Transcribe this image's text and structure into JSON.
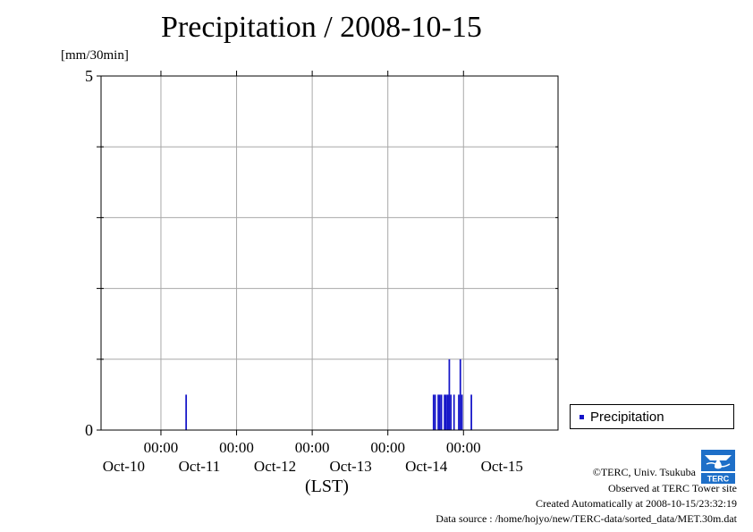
{
  "chart_data": {
    "type": "bar",
    "title": "Precipitation / 2008-10-15",
    "ylabel": "[mm/30min]",
    "xlabel": "(LST)",
    "ylim": [
      0,
      5
    ],
    "xlim": [
      "2008-10-09 05:00",
      "2008-10-15 06:00"
    ],
    "yticks": [
      {
        "value": 0,
        "label": "0"
      },
      {
        "value": 5,
        "label": "5"
      }
    ],
    "ygrid": [
      1,
      2,
      3,
      4
    ],
    "xticks": [
      {
        "at": "2008-10-10 00:00",
        "time": "00:00",
        "date": "Oct-11"
      },
      {
        "at": "2008-10-11 00:00",
        "time": "00:00",
        "date": "Oct-12"
      },
      {
        "at": "2008-10-12 00:00",
        "time": "00:00",
        "date": "Oct-13"
      },
      {
        "at": "2008-10-13 00:00",
        "time": "00:00",
        "date": "Oct-14"
      },
      {
        "at": "2008-10-14 00:00",
        "time": "00:00",
        "date": "Oct-15"
      }
    ],
    "date_label_first": "Oct-10",
    "grid": true,
    "legend_position": "bottom-right",
    "series": [
      {
        "name": "Precipitation",
        "color": "#1515c8",
        "points": [
          {
            "x": "2008-10-10 08:00",
            "y": 0.5
          },
          {
            "x": "2008-10-13 14:30",
            "y": 0.5
          },
          {
            "x": "2008-10-13 15:00",
            "y": 0.5
          },
          {
            "x": "2008-10-13 16:00",
            "y": 0.5
          },
          {
            "x": "2008-10-13 16:30",
            "y": 0.5
          },
          {
            "x": "2008-10-13 17:00",
            "y": 0.5
          },
          {
            "x": "2008-10-13 18:00",
            "y": 0.5
          },
          {
            "x": "2008-10-13 18:30",
            "y": 0.5
          },
          {
            "x": "2008-10-13 19:00",
            "y": 0.5
          },
          {
            "x": "2008-10-13 19:30",
            "y": 1.0
          },
          {
            "x": "2008-10-13 20:00",
            "y": 0.5
          },
          {
            "x": "2008-10-13 21:00",
            "y": 0.5
          },
          {
            "x": "2008-10-13 22:30",
            "y": 0.5
          },
          {
            "x": "2008-10-13 23:00",
            "y": 1.0
          },
          {
            "x": "2008-10-13 23:30",
            "y": 0.5
          },
          {
            "x": "2008-10-14 02:30",
            "y": 0.5
          }
        ]
      }
    ]
  },
  "legend": {
    "label": "Precipitation"
  },
  "footer": {
    "copyright": "©TERC, Univ. Tsukuba",
    "site": "Observed at TERC Tower site",
    "created": "Created Automatically at 2008-10-15/23:32:19",
    "source": "Data source : /home/hojyo/new/TERC-data/sorted_data/MET.30m.dat",
    "logo_text": "TERC"
  }
}
